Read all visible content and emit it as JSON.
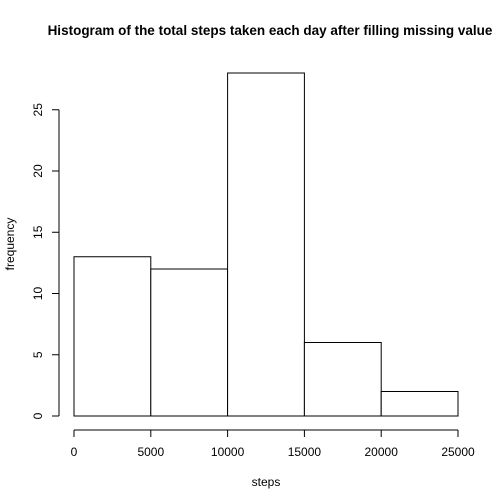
{
  "chart_data": {
    "type": "bar",
    "title": "Histogram of the total steps taken each day after filling missing value",
    "xlabel": "steps",
    "ylabel": "frequency",
    "bins": [
      {
        "from": 0,
        "to": 5000,
        "value": 13
      },
      {
        "from": 5000,
        "to": 10000,
        "value": 12
      },
      {
        "from": 10000,
        "to": 15000,
        "value": 28
      },
      {
        "from": 15000,
        "to": 20000,
        "value": 6
      },
      {
        "from": 20000,
        "to": 25000,
        "value": 2
      }
    ],
    "xlim": [
      0,
      25000
    ],
    "ylim": [
      0,
      28
    ],
    "x_ticks": [
      0,
      5000,
      10000,
      15000,
      20000,
      25000
    ],
    "y_ticks": [
      0,
      5,
      10,
      15,
      20,
      25
    ],
    "grid": false
  }
}
